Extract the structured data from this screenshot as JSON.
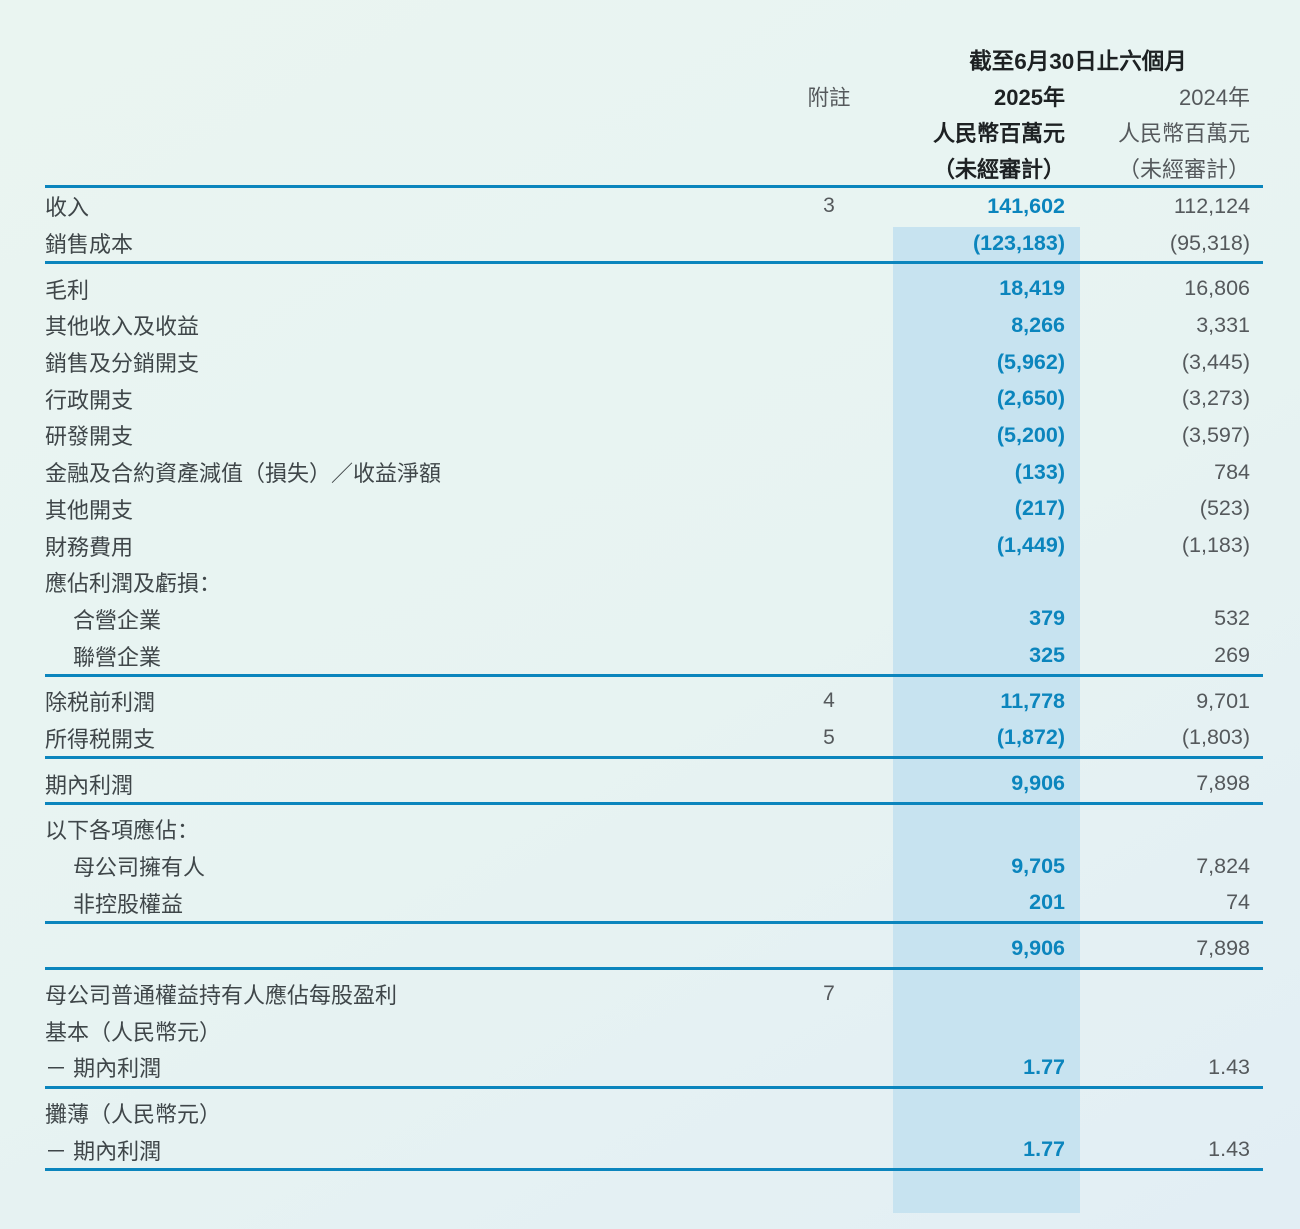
{
  "colors": {
    "background": "#e7f3f2",
    "highlight_band": "#c7e3f0",
    "rule_blue": "#0b85bd",
    "value_2025_blue": "#0b85bd",
    "value_2024_gray": "#55595c",
    "header_black": "#1d2123",
    "label_gray": "#3f4649"
  },
  "header": {
    "period_title": "截至6月30日止六個月",
    "note_col": "附註",
    "col_2025": {
      "year": "2025年",
      "unit": "人民幣百萬元",
      "audit": "（未經審計）"
    },
    "col_2024": {
      "year": "2024年",
      "unit": "人民幣百萬元",
      "audit": "（未經審計）"
    }
  },
  "rows": [
    {
      "label": "收入",
      "note": "3",
      "v2025": "141,602",
      "v2024": "112,124"
    },
    {
      "label": "銷售成本",
      "note": "",
      "v2025": "(123,183)",
      "v2024": "(95,318)",
      "rule": true
    },
    {
      "label": "毛利",
      "note": "",
      "v2025": "18,419",
      "v2024": "16,806",
      "pad": true
    },
    {
      "label": "其他收入及收益",
      "note": "",
      "v2025": "8,266",
      "v2024": "3,331"
    },
    {
      "label": "銷售及分銷開支",
      "note": "",
      "v2025": "(5,962)",
      "v2024": "(3,445)"
    },
    {
      "label": "行政開支",
      "note": "",
      "v2025": "(2,650)",
      "v2024": "(3,273)"
    },
    {
      "label": "研發開支",
      "note": "",
      "v2025": "(5,200)",
      "v2024": "(3,597)"
    },
    {
      "label": "金融及合約資產減值（損失）／收益淨額",
      "note": "",
      "v2025": "(133)",
      "v2024": "784"
    },
    {
      "label": "其他開支",
      "note": "",
      "v2025": "(217)",
      "v2024": "(523)"
    },
    {
      "label": "財務費用",
      "note": "",
      "v2025": "(1,449)",
      "v2024": "(1,183)"
    },
    {
      "label": "應佔利潤及虧損：",
      "note": "",
      "v2025": "",
      "v2024": ""
    },
    {
      "label": "合營企業",
      "indent": true,
      "note": "",
      "v2025": "379",
      "v2024": "532"
    },
    {
      "label": "聯營企業",
      "indent": true,
      "note": "",
      "v2025": "325",
      "v2024": "269",
      "rule": true
    },
    {
      "label": "除税前利潤",
      "note": "4",
      "v2025": "11,778",
      "v2024": "9,701",
      "pad": true
    },
    {
      "label": "所得税開支",
      "note": "5",
      "v2025": "(1,872)",
      "v2024": "(1,803)",
      "rule": true
    },
    {
      "label": "期內利潤",
      "note": "",
      "v2025": "9,906",
      "v2024": "7,898",
      "rule": true,
      "pad": true
    },
    {
      "label": "以下各項應佔：",
      "note": "",
      "v2025": "",
      "v2024": "",
      "pad": true
    },
    {
      "label": "母公司擁有人",
      "indent": true,
      "note": "",
      "v2025": "9,705",
      "v2024": "7,824"
    },
    {
      "label": "非控股權益",
      "indent": true,
      "note": "",
      "v2025": "201",
      "v2024": "74",
      "rule": true
    },
    {
      "label": "",
      "note": "",
      "v2025": "9,906",
      "v2024": "7,898",
      "rule": true,
      "pad": true
    },
    {
      "label": "母公司普通權益持有人應佔每股盈利",
      "note": "7",
      "v2025": "",
      "v2024": "",
      "pad": true
    },
    {
      "label": "基本（人民幣元）",
      "note": "",
      "v2025": "",
      "v2024": ""
    },
    {
      "label": "－ 期內利潤",
      "note": "",
      "v2025": "1.77",
      "v2024": "1.43",
      "rule": true
    },
    {
      "label": "攤薄（人民幣元）",
      "note": "",
      "v2025": "",
      "v2024": "",
      "pad": true
    },
    {
      "label": "－ 期內利潤",
      "note": "",
      "v2025": "1.77",
      "v2024": "1.43",
      "rule": true
    }
  ]
}
